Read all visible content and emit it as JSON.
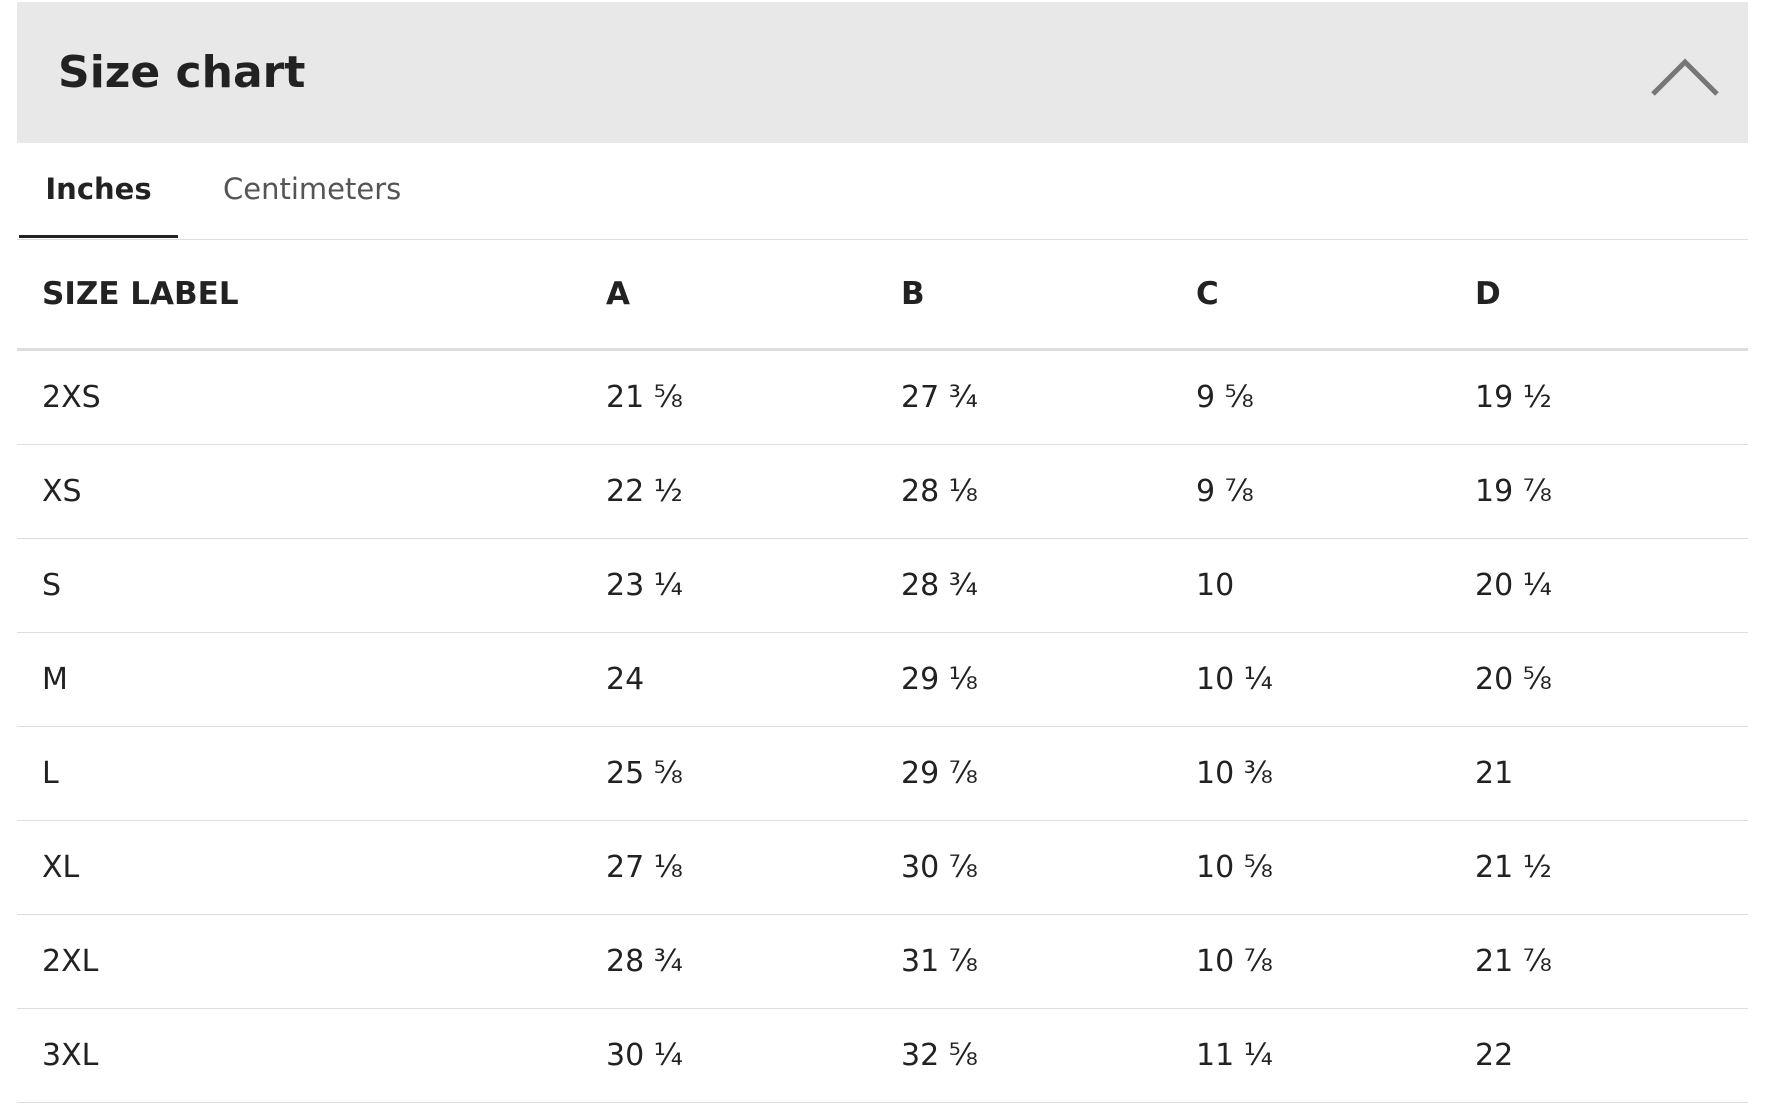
{
  "header": {
    "title": "Size chart"
  },
  "tabs": [
    "Inches",
    "Centimeters"
  ],
  "table": {
    "columns": [
      "SIZE LABEL",
      "A",
      "B",
      "C",
      "D"
    ],
    "rows": [
      [
        "2XS",
        "21 ⅝",
        "27 ¾",
        "9 ⅝",
        "19 ½"
      ],
      [
        "XS",
        "22 ½",
        "28 ⅛",
        "9 ⅞",
        "19 ⅞"
      ],
      [
        "S",
        "23 ¼",
        "28 ¾",
        "10",
        "20 ¼"
      ],
      [
        "M",
        "24",
        "29 ⅛",
        "10 ¼",
        "20 ⅝"
      ],
      [
        "L",
        "25 ⅝",
        "29 ⅞",
        "10 ⅜",
        "21"
      ],
      [
        "XL",
        "27 ⅛",
        "30 ⅞",
        "10 ⅝",
        "21 ½"
      ],
      [
        "2XL",
        "28 ¾",
        "31 ⅞",
        "10 ⅞",
        "21 ⅞"
      ],
      [
        "3XL",
        "30 ¼",
        "32 ⅝",
        "11 ¼",
        "22"
      ]
    ]
  }
}
